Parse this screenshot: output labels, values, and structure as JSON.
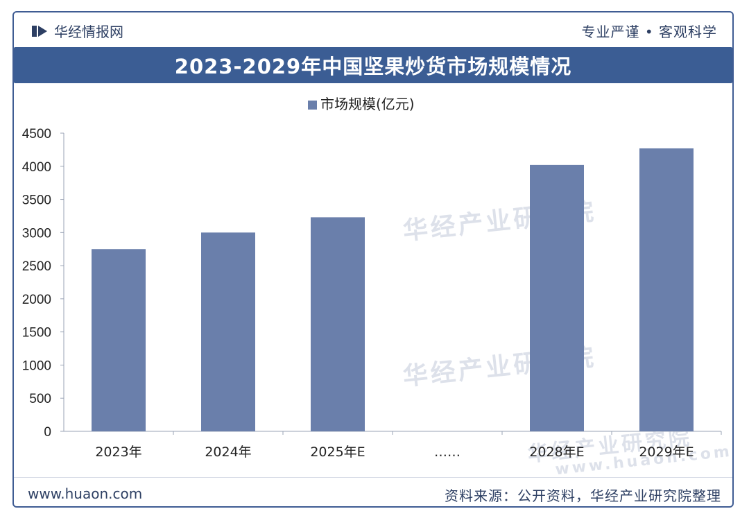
{
  "header": {
    "brand_name": "华经情报网",
    "slogan": "专业严谨 • 客观科学"
  },
  "footer": {
    "site": "www.huaon.com",
    "source": "资料来源：公开资料，华经产业研究院整理"
  },
  "watermark": {
    "org": "华经产业研究院",
    "url": "www.huaon.com"
  },
  "colors": {
    "bar": "#6a7fab",
    "title_bg": "#3b5d94",
    "axis": "#9aa3b5",
    "text": "#222222"
  },
  "chart_data": {
    "type": "bar",
    "title": "2023-2029年中国坚果炒货市场规模情况",
    "legend": "市场规模(亿元)",
    "categories": [
      "2023年",
      "2024年",
      "2025年E",
      "……",
      "2028年E",
      "2029年E"
    ],
    "values": [
      2750,
      3000,
      3230,
      null,
      4020,
      4270
    ],
    "ylim": [
      0,
      4500
    ],
    "yticks": [
      0,
      500,
      1000,
      1500,
      2000,
      2500,
      3000,
      3500,
      4000,
      4500
    ],
    "xlabel": "",
    "ylabel": "",
    "grid": false,
    "legend_position": "top-center"
  }
}
